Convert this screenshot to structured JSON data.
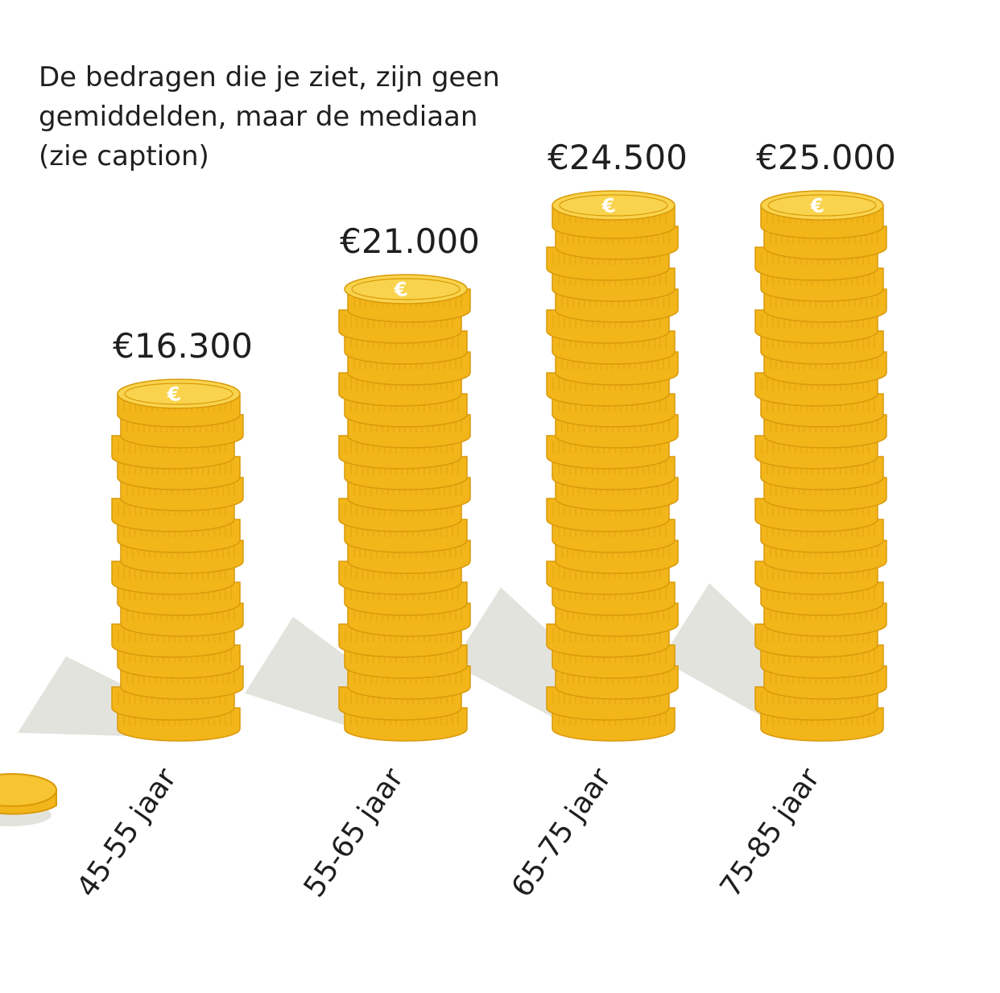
{
  "note": [
    "De bedragen die je ziet, zijn geen",
    "gemiddelden, maar de mediaan",
    "(zie caption)"
  ],
  "chart_data": {
    "type": "bar",
    "categories": [
      "45-55 jaar",
      "55-65 jaar",
      "65-75 jaar",
      "75-85 jaar"
    ],
    "values": [
      16300,
      21000,
      24500,
      25000
    ],
    "value_labels": [
      "€16.300",
      "€21.000",
      "€24.500",
      "€25.000"
    ],
    "bar_style": "coin stacks",
    "grid": false,
    "legend": "none",
    "colors": {
      "coin_face": "#f7c531",
      "coin_side": "#f2b51a",
      "coin_rim": "#d99a0a",
      "coin_top": "#f9d34d",
      "shadow": "#e3e3dd",
      "text": "#1f1f1f"
    }
  }
}
